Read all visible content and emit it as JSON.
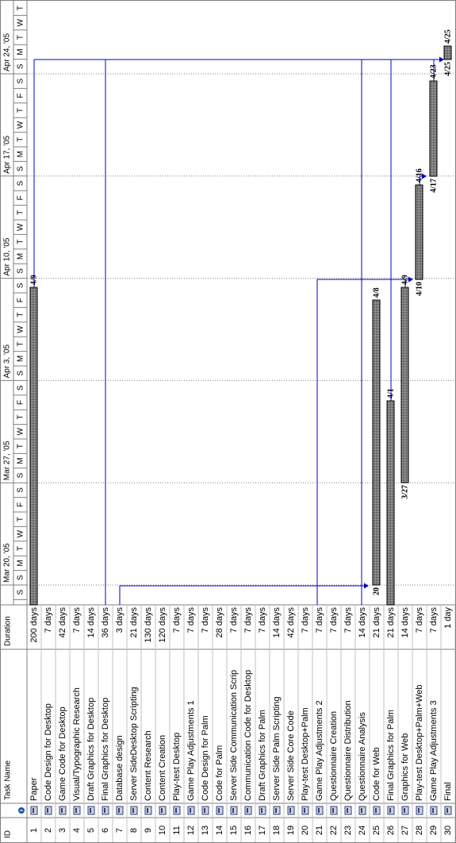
{
  "table": {
    "headers": {
      "id": "ID",
      "task_name": "Task Name",
      "duration": "Duration"
    },
    "rows": [
      {
        "id": 1,
        "name": "Paper",
        "duration": "200 days",
        "end_label": "4/9"
      },
      {
        "id": 2,
        "name": "Code Design for Desktop",
        "duration": "7 days"
      },
      {
        "id": 3,
        "name": "Game Code for Desktop",
        "duration": "42 days"
      },
      {
        "id": 4,
        "name": "Visual/Typographic Research",
        "duration": "7 days"
      },
      {
        "id": 5,
        "name": "Draft Graphics for Desktop",
        "duration": "14 days"
      },
      {
        "id": 6,
        "name": "Final Graphics for Desktop",
        "duration": "36 days"
      },
      {
        "id": 7,
        "name": "Database design",
        "duration": "3 days"
      },
      {
        "id": 8,
        "name": "Server SideDesktop Scripting",
        "duration": "21 days"
      },
      {
        "id": 9,
        "name": "Content Research",
        "duration": "130 days"
      },
      {
        "id": 10,
        "name": "Content Creation",
        "duration": "120 days"
      },
      {
        "id": 11,
        "name": "Play-test Desktop",
        "duration": "7 days"
      },
      {
        "id": 12,
        "name": "Game Play Adjustments 1",
        "duration": "7 days"
      },
      {
        "id": 13,
        "name": "Code Design for Palm",
        "duration": "7 days"
      },
      {
        "id": 14,
        "name": "Code for Palm",
        "duration": "28 days"
      },
      {
        "id": 15,
        "name": "Server Side Communication Scrip",
        "duration": "7 days"
      },
      {
        "id": 16,
        "name": "Communication Code for Desktop",
        "duration": "7 days"
      },
      {
        "id": 17,
        "name": "Draft Graphics for Palm",
        "duration": "7 days"
      },
      {
        "id": 18,
        "name": "Server Side Palm Scripting",
        "duration": "14 days"
      },
      {
        "id": 19,
        "name": "Server Side Core Code",
        "duration": "42 days"
      },
      {
        "id": 20,
        "name": "Play-test Desktop+Palm",
        "duration": "7 days"
      },
      {
        "id": 21,
        "name": "Game Play Adjustments 2",
        "duration": "7 days"
      },
      {
        "id": 22,
        "name": "Questionnaire Creation",
        "duration": "7 days"
      },
      {
        "id": 23,
        "name": "Questionnaire Distribution",
        "duration": "7 days"
      },
      {
        "id": 24,
        "name": "Questionnaire Analysis",
        "duration": "14 days"
      },
      {
        "id": 25,
        "name": "Code for Web",
        "duration": "21 days",
        "start_label": "20",
        "end_label": "4/8"
      },
      {
        "id": 26,
        "name": "Final Graphics for Palm",
        "duration": "21 days",
        "end_label": "4/1"
      },
      {
        "id": 27,
        "name": "Graphics for Web",
        "duration": "14 days",
        "start_label": "3/27",
        "end_label": "4/9"
      },
      {
        "id": 28,
        "name": "Play-test Desktop+Palm+Web",
        "duration": "7 days",
        "start_label": "4/10",
        "end_label": "4/16"
      },
      {
        "id": 29,
        "name": "Game Play Adjustments 3",
        "duration": "7 days",
        "start_label": "4/17",
        "end_label": "4/23"
      },
      {
        "id": 30,
        "name": "Final",
        "duration": "1 day",
        "start_label": "4/25",
        "end_label": "4/25"
      }
    ]
  },
  "timeline": {
    "weeks": [
      "Mar 20, '05",
      "Mar 27, '05",
      "Apr 3, '05",
      "Apr 10, '05",
      "Apr 17, '05",
      "Apr 24, '05"
    ],
    "days": [
      "S",
      "S",
      "M",
      "T",
      "W",
      "T",
      "F",
      "S",
      "S",
      "M",
      "T",
      "W",
      "T",
      "F",
      "S",
      "S",
      "M",
      "T",
      "W",
      "T",
      "F",
      "S",
      "S",
      "M",
      "T",
      "W",
      "T",
      "F",
      "S",
      "S",
      "M",
      "T",
      "W",
      "T",
      "F",
      "S",
      "S",
      "M",
      "T",
      "W",
      "T"
    ]
  }
}
